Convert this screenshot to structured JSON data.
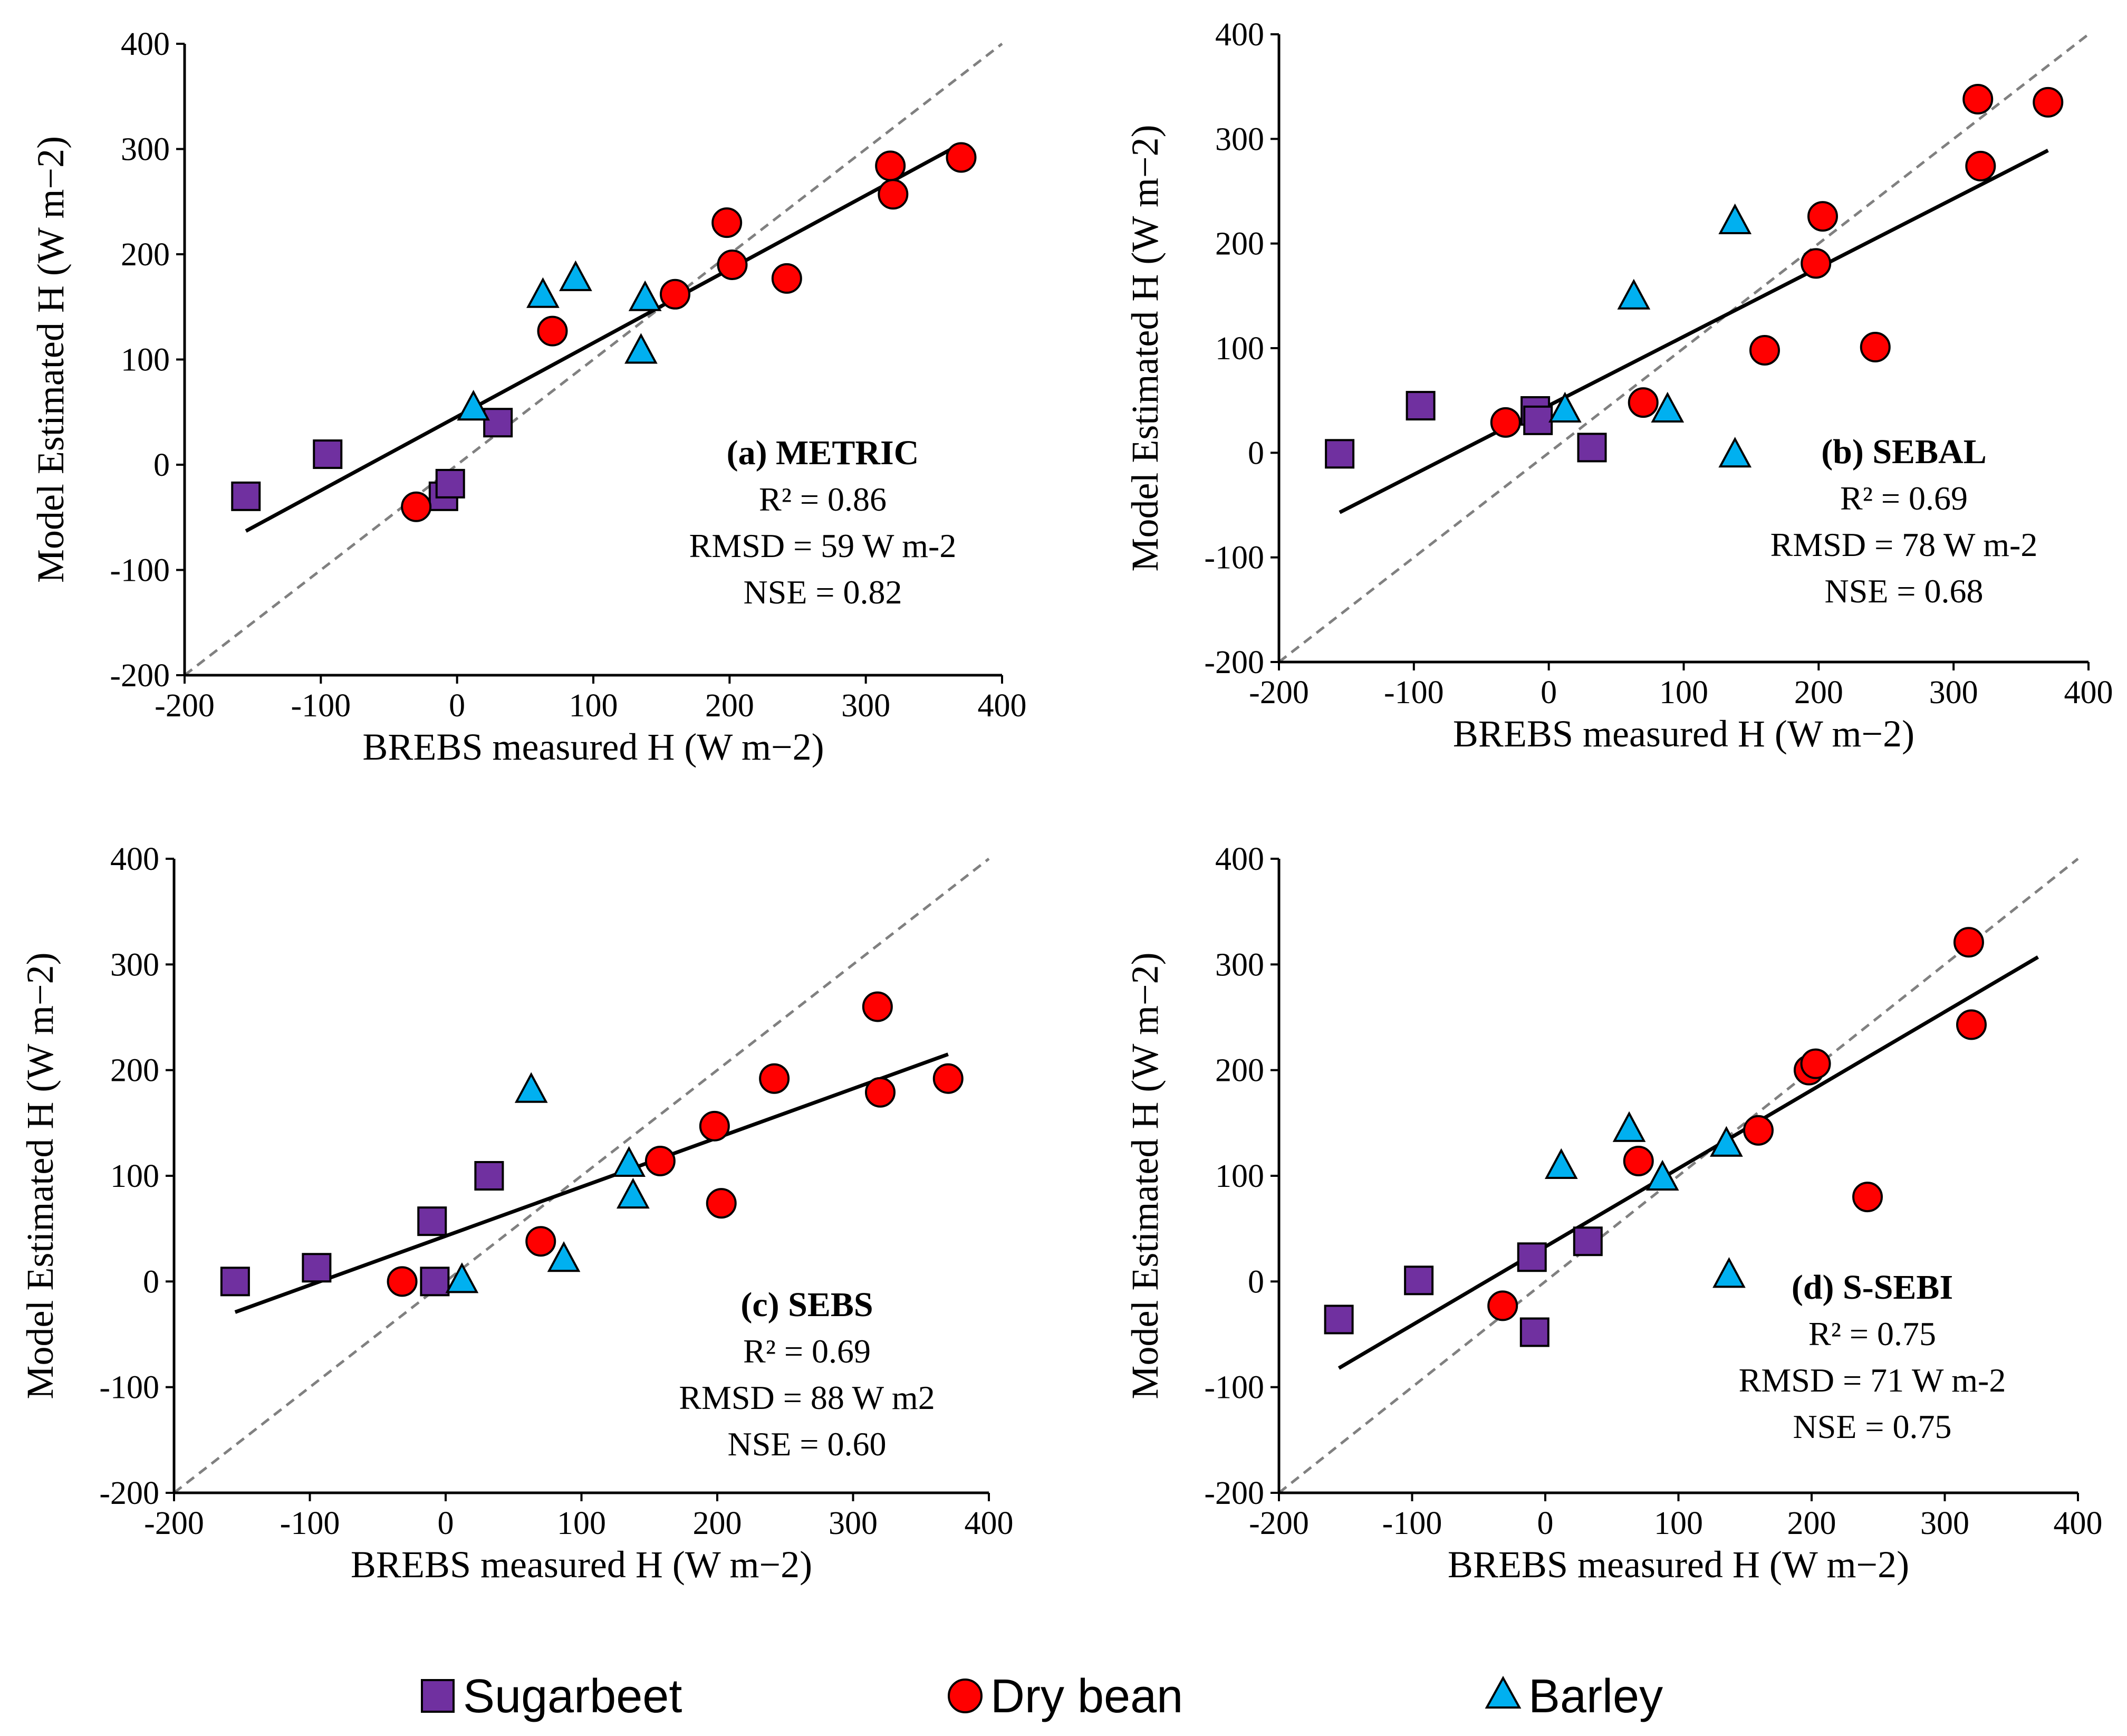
{
  "colors": {
    "sugarbeet": "#7030a0",
    "dry_bean": "#ff0000",
    "barley": "#00b0f0",
    "one_to_one": "#808080",
    "fit_line": "#000000"
  },
  "legend": [
    {
      "key": "sugarbeet",
      "label": "Sugarbeet",
      "marker": "square"
    },
    {
      "key": "dry_bean",
      "label": "Dry bean",
      "marker": "circle"
    },
    {
      "key": "barley",
      "label": "Barley",
      "marker": "triangle"
    }
  ],
  "chart_data": [
    {
      "type": "scatter",
      "id": "a",
      "title": "(a) METRIC",
      "stats": [
        "R² = 0.86",
        "RMSD = 59 W m-2",
        "NSE = 0.82"
      ],
      "xlabel": "BREBS measured H (W m−2)",
      "ylabel": "Model Estimated H (W m−2)",
      "xlim": [
        -200,
        400
      ],
      "ylim": [
        -200,
        400
      ],
      "xticks": [
        "-200",
        "-100",
        "0",
        "100",
        "200",
        "300",
        "400"
      ],
      "yticks": [
        "-200",
        "-100",
        "0",
        "100",
        "200",
        "300",
        "400"
      ],
      "fit": {
        "x": [
          -155,
          370
        ],
        "y": [
          -63,
          305
        ]
      },
      "series": [
        {
          "name": "Sugarbeet",
          "points": [
            [
              -155,
              -30
            ],
            [
              -95,
              10
            ],
            [
              -10,
              -30
            ],
            [
              -5,
              -18
            ],
            [
              30,
              40
            ]
          ]
        },
        {
          "name": "Dry bean",
          "points": [
            [
              -30,
              -40
            ],
            [
              70,
              127
            ],
            [
              160,
              162
            ],
            [
              198,
              230
            ],
            [
              202,
              190
            ],
            [
              242,
              177
            ],
            [
              318,
              284
            ],
            [
              320,
              257
            ],
            [
              370,
              292
            ]
          ]
        },
        {
          "name": "Barley",
          "points": [
            [
              12,
              53
            ],
            [
              63,
              160
            ],
            [
              87,
              176
            ],
            [
              135,
              107
            ],
            [
              138,
              157
            ]
          ]
        }
      ]
    },
    {
      "type": "scatter",
      "id": "b",
      "title": "(b) SEBAL",
      "stats": [
        "R² = 0.69",
        "RMSD = 78 W m-2",
        "NSE = 0.68"
      ],
      "xlabel": "BREBS measured H (W m−2)",
      "ylabel": "Model Estimated H (W m−2)",
      "xlim": [
        -200,
        400
      ],
      "ylim": [
        -200,
        400
      ],
      "xticks": [
        "-200",
        "-100",
        "0",
        "100",
        "200",
        "300",
        "400"
      ],
      "yticks": [
        "-200",
        "-100",
        "0",
        "100",
        "200",
        "300",
        "400"
      ],
      "fit": {
        "x": [
          -155,
          370
        ],
        "y": [
          -57,
          289
        ]
      },
      "series": [
        {
          "name": "Sugarbeet",
          "points": [
            [
              -155,
              -1
            ],
            [
              -95,
              45
            ],
            [
              -10,
              40
            ],
            [
              -8,
              31
            ],
            [
              32,
              5
            ]
          ]
        },
        {
          "name": "Dry bean",
          "points": [
            [
              -32,
              29
            ],
            [
              70,
              48
            ],
            [
              160,
              98
            ],
            [
              198,
              181
            ],
            [
              203,
              226
            ],
            [
              242,
              101
            ],
            [
              318,
              338
            ],
            [
              320,
              274
            ],
            [
              370,
              335
            ]
          ]
        },
        {
          "name": "Barley",
          "points": [
            [
              12,
              40
            ],
            [
              63,
              148
            ],
            [
              88,
              40
            ],
            [
              138,
              220
            ],
            [
              138,
              -3
            ]
          ]
        }
      ]
    },
    {
      "type": "scatter",
      "id": "c",
      "title": "(c) SEBS",
      "stats": [
        "R² = 0.69",
        "RMSD = 88 W m2",
        "NSE = 0.60"
      ],
      "xlabel": "BREBS measured H (W m−2)",
      "ylabel": "Model Estimated H (W m−2)",
      "xlim": [
        -200,
        400
      ],
      "ylim": [
        -200,
        400
      ],
      "xticks": [
        "-200",
        "-100",
        "0",
        "100",
        "200",
        "300",
        "400"
      ],
      "yticks": [
        "-200",
        "-100",
        "0",
        "100",
        "200",
        "300",
        "400"
      ],
      "fit": {
        "x": [
          -155,
          370
        ],
        "y": [
          -29,
          215
        ]
      },
      "series": [
        {
          "name": "Sugarbeet",
          "points": [
            [
              -155,
              0
            ],
            [
              -95,
              13
            ],
            [
              -10,
              57
            ],
            [
              -8,
              0
            ],
            [
              32,
              100
            ]
          ]
        },
        {
          "name": "Dry bean",
          "points": [
            [
              -32,
              0
            ],
            [
              70,
              38
            ],
            [
              158,
              114
            ],
            [
              198,
              147
            ],
            [
              203,
              74
            ],
            [
              242,
              192
            ],
            [
              318,
              260
            ],
            [
              320,
              179
            ],
            [
              370,
              192
            ]
          ]
        },
        {
          "name": "Barley",
          "points": [
            [
              12,
              0
            ],
            [
              63,
              180
            ],
            [
              87,
              20
            ],
            [
              135,
              110
            ],
            [
              138,
              80
            ]
          ]
        }
      ]
    },
    {
      "type": "scatter",
      "id": "d",
      "title": "(d) S-SEBI",
      "stats": [
        "R² = 0.75",
        "RMSD = 71 W m-2",
        "NSE = 0.75"
      ],
      "xlabel": "BREBS measured H (W m−2)",
      "ylabel": "Model Estimated H (W m−2)",
      "xlim": [
        -200,
        400
      ],
      "ylim": [
        -200,
        400
      ],
      "xticks": [
        "-200",
        "-100",
        "0",
        "100",
        "200",
        "300",
        "400"
      ],
      "yticks": [
        "-200",
        "-100",
        "0",
        "100",
        "200",
        "300",
        "400"
      ],
      "fit": {
        "x": [
          -155,
          370
        ],
        "y": [
          -82,
          307
        ]
      },
      "series": [
        {
          "name": "Sugarbeet",
          "points": [
            [
              -155,
              -36
            ],
            [
              -95,
              1
            ],
            [
              -10,
              23
            ],
            [
              -8,
              -48
            ],
            [
              32,
              38
            ]
          ]
        },
        {
          "name": "Dry bean",
          "points": [
            [
              -32,
              -23
            ],
            [
              70,
              114
            ],
            [
              160,
              143
            ],
            [
              198,
              200
            ],
            [
              203,
              206
            ],
            [
              242,
              80
            ],
            [
              318,
              321
            ],
            [
              320,
              243
            ]
          ]
        },
        {
          "name": "Barley",
          "points": [
            [
              12,
              108
            ],
            [
              63,
              143
            ],
            [
              88,
              97
            ],
            [
              136,
              129
            ],
            [
              138,
              5
            ]
          ]
        }
      ]
    }
  ]
}
